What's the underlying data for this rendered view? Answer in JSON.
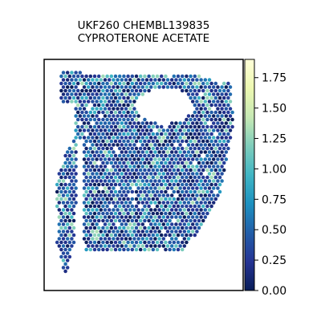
{
  "chart_data": {
    "type": "heatmap",
    "subtype": "spatial hexbin",
    "title_lines": [
      "UKF260 CHEMBL139835",
      "CYPROTERONE ACETATE"
    ],
    "xlabel": "",
    "ylabel": "",
    "axis_ticks_visible": false,
    "colorbar": {
      "colormap": "YlGnBu",
      "range": [
        0,
        1.9
      ],
      "ticks": [
        0.0,
        0.25,
        0.5,
        0.75,
        1.0,
        1.25,
        1.5,
        1.75
      ],
      "tick_labels": [
        "0.00",
        "0.25",
        "0.50",
        "0.75",
        "1.00",
        "1.25",
        "1.50",
        "1.75"
      ]
    },
    "value_distribution": {
      "typical_range": [
        0.0,
        0.6
      ],
      "occasional_range": [
        0.75,
        1.25
      ],
      "rare_max": 1.35
    },
    "tissue_shape": "left vertical strip with a larger main section; a hole near the top-center of the main section",
    "grid": false,
    "legend": "colorbar right"
  }
}
